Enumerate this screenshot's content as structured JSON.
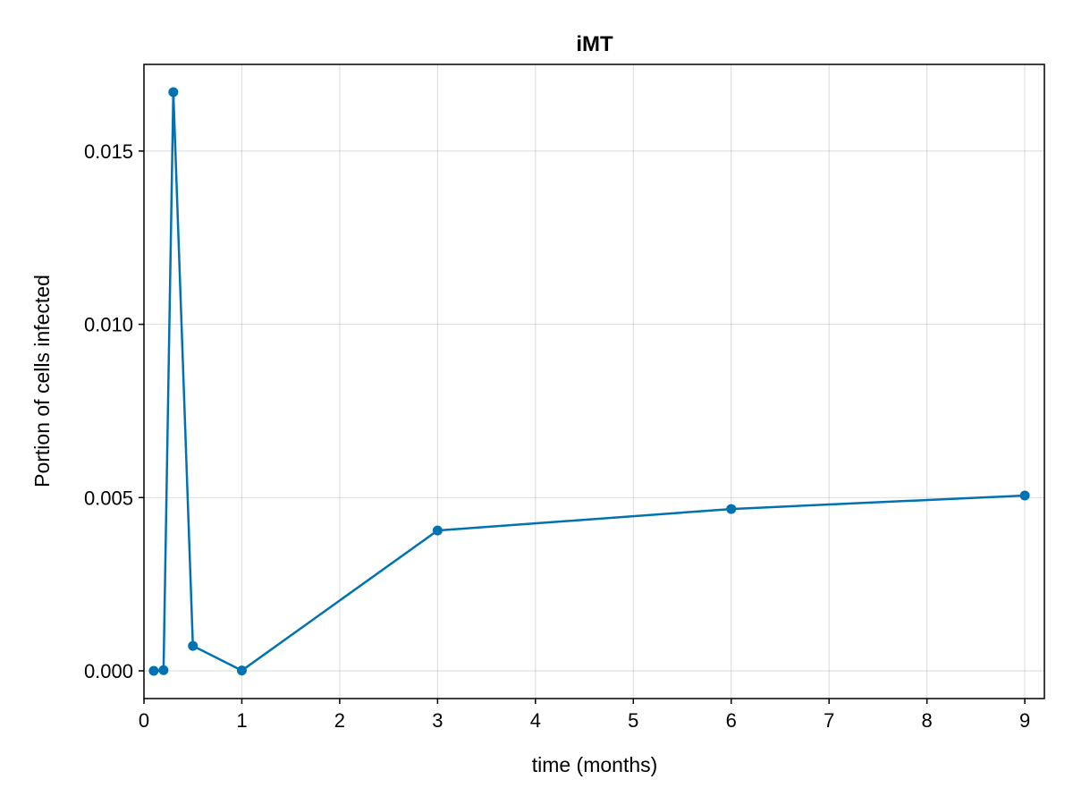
{
  "chart_data": {
    "type": "line",
    "title": "iMT",
    "xlabel": "time (months)",
    "ylabel": "Portion of cells infected",
    "xlim": [
      0,
      9.2
    ],
    "ylim": [
      -0.0008,
      0.0175
    ],
    "xticks": [
      0,
      1,
      2,
      3,
      4,
      5,
      6,
      7,
      8,
      9
    ],
    "xtick_labels": [
      "0",
      "1",
      "2",
      "3",
      "4",
      "5",
      "6",
      "7",
      "8",
      "9"
    ],
    "yticks": [
      0.0,
      0.005,
      0.01,
      0.015
    ],
    "ytick_labels": [
      "0.000",
      "0.005",
      "0.010",
      "0.015"
    ],
    "grid": true,
    "series": [
      {
        "color": "#0072b2",
        "x": [
          0.1,
          0.2,
          0.3,
          0.5,
          1,
          3,
          6,
          9
        ],
        "y": [
          0.0,
          2e-05,
          0.0167,
          0.00072,
          1e-05,
          0.00405,
          0.00467,
          0.00506
        ]
      }
    ]
  }
}
